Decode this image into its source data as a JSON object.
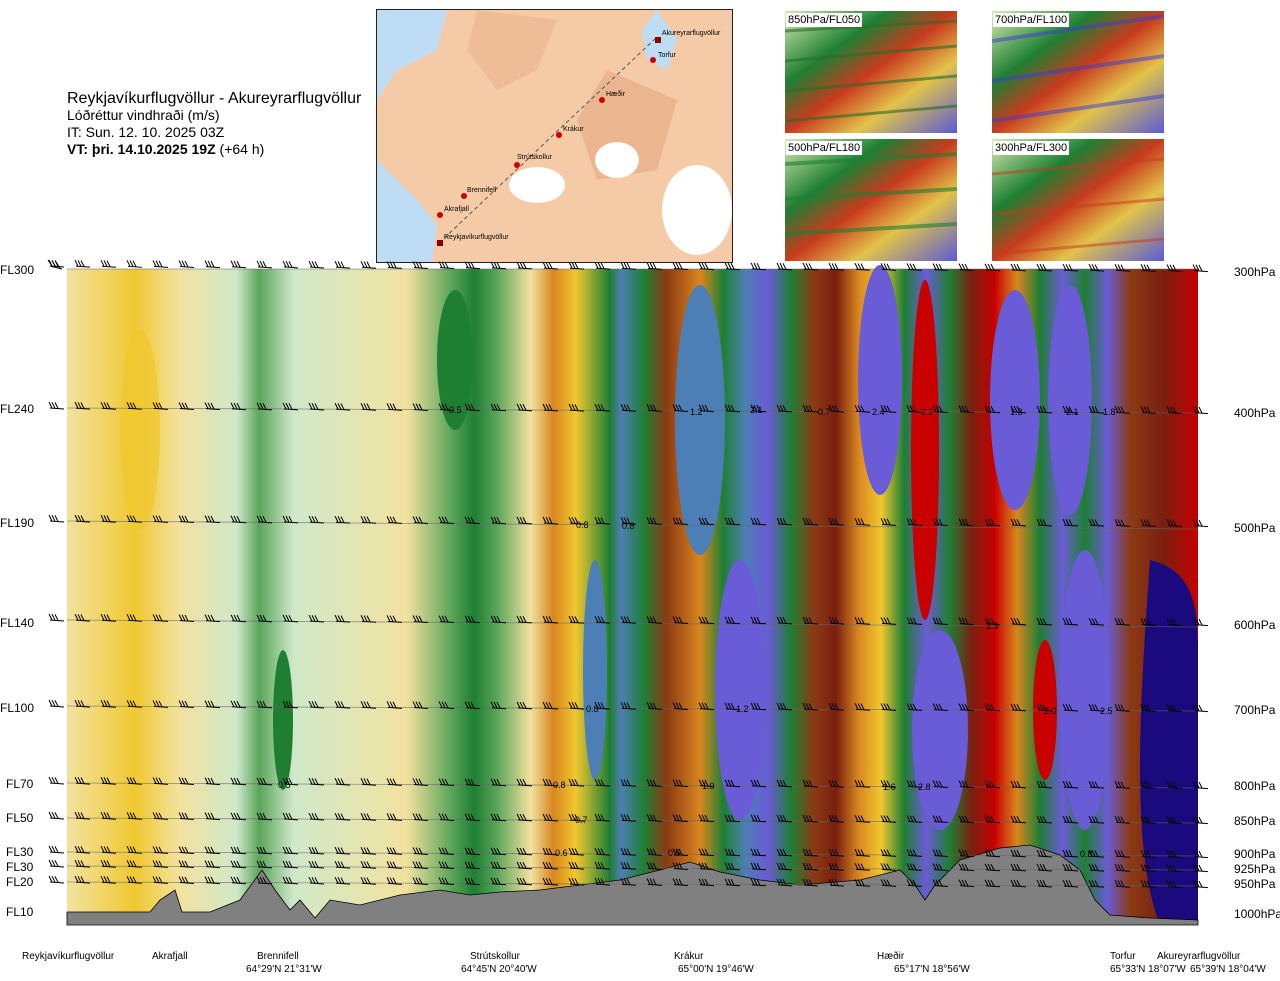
{
  "header": {
    "route": "Reykjavíkurflugvöllur - Akureyrarflugvöllur",
    "parameter": "Lóðréttur vindhraði (m/s)",
    "issue_time": "IT: Sun. 12. 10. 2025 03Z",
    "valid_time_bold": "VT: þri. 14.10.2025 19Z",
    "valid_time_offset": " (+64 h)"
  },
  "map": {
    "points": [
      "Akureyrarflugvöllur",
      "Torfur",
      "Hæðir",
      "Krákur",
      "Strútskollur",
      "Brennifell",
      "Akrafjall",
      "Reykjavíkurflugvöllur"
    ]
  },
  "thumbnails": [
    "850hPa/FL050",
    "700hPa/FL100",
    "500hPa/FL180",
    "300hPa/FL300"
  ],
  "levels_fl": [
    "FL300",
    "FL240",
    "FL190",
    "FL140",
    "FL100",
    "FL70",
    "FL50",
    "FL30",
    "FL30",
    "FL20",
    "FL10"
  ],
  "levels_hpa": [
    "300hPa",
    "400hPa",
    "500hPa",
    "600hPa",
    "700hPa",
    "800hPa",
    "850hPa",
    "900hPa",
    "925hPa",
    "950hPa",
    "1000hPa"
  ],
  "contour_values": [
    "0.5",
    "1.2",
    "2.1",
    "0.7",
    "2.4",
    "2.2",
    "1.8",
    "2.1",
    "1.8",
    "0.8",
    "0.8",
    "1.3",
    "0.8",
    "1.2",
    "2.0",
    "2.5",
    "0.5",
    "0.8",
    "1.0",
    "1.6",
    "2.8",
    "0.7",
    "0.6",
    "0.5",
    "0.8"
  ],
  "stations": [
    "Reykjavíkurflugvöllur",
    "Akrafjall",
    "Brennifell",
    "Strútskollur",
    "Krákur",
    "Hæðir",
    "Torfur",
    "Akureyrarflugvöllur"
  ],
  "coordinates": [
    "64°29'N 21°31'W",
    "64°45'N 20°40'W",
    "65°00'N 19°46'W",
    "65°17'N 18°56'W",
    "65°33'N 18°07'W",
    "65°39'N 18°04'W"
  ],
  "palette": {
    "strong_down": "#7a1f10",
    "down": "#8b3a14",
    "weak_down": "#d9871e",
    "neutral_warm": "#f3e2a0",
    "neutral_cool": "#cfe8c9",
    "weak_up": "#5aa55a",
    "up": "#1e7f33",
    "strong_up": "#4c7fb5",
    "very_strong_up": "#6a5bd6",
    "extreme_up": "#1b0a7d",
    "extreme_down": "#c80000",
    "terrain": "#808080"
  }
}
